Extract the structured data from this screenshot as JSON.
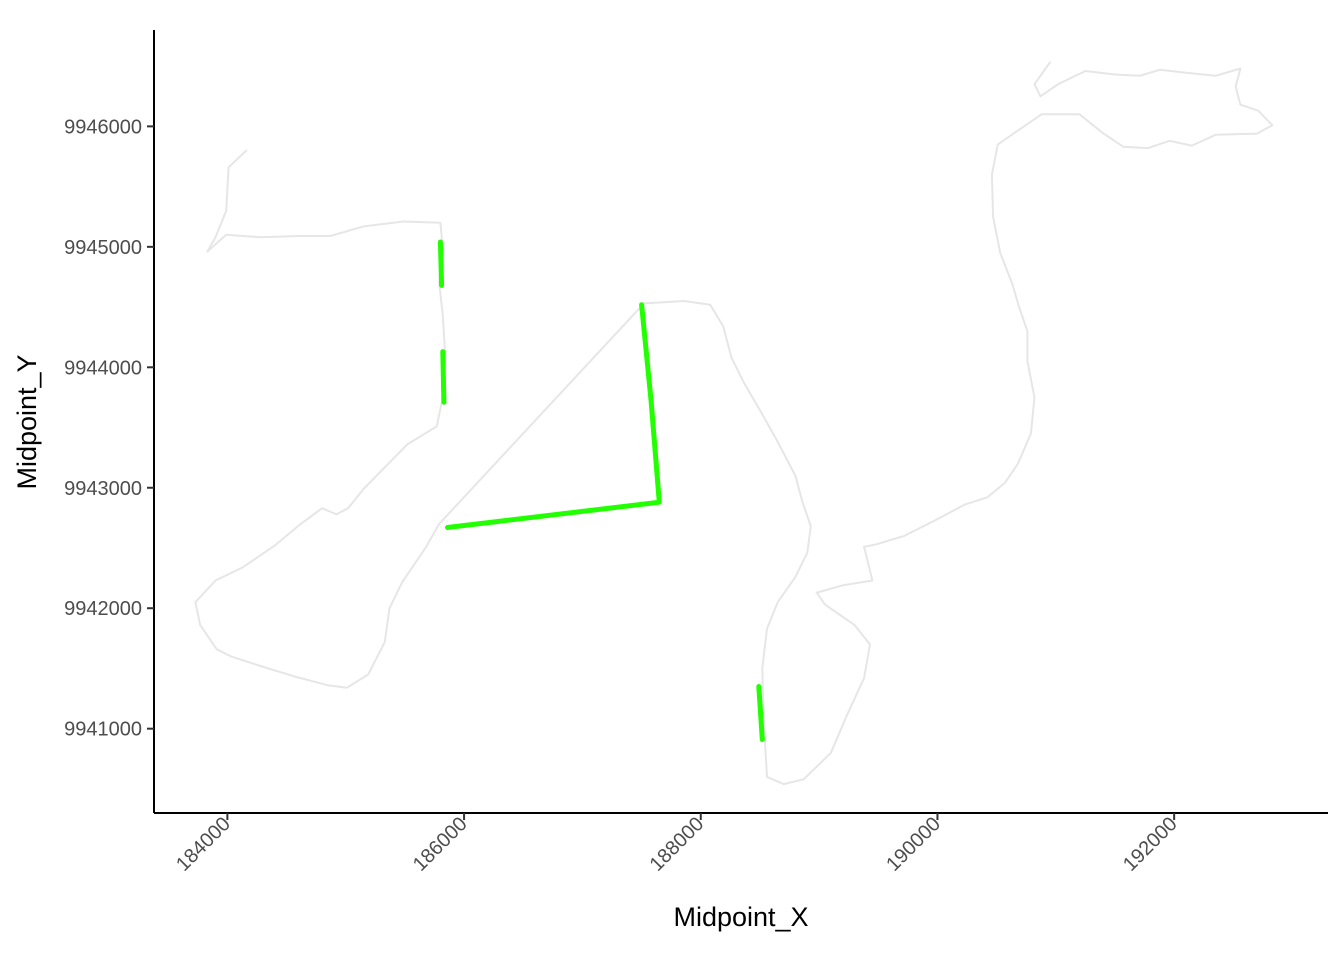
{
  "chart_data": {
    "type": "line",
    "title": "",
    "xlabel": "Midpoint_X",
    "ylabel": "Midpoint_Y",
    "xlim": [
      183380,
      193300
    ],
    "ylim": [
      9940300,
      9946800
    ],
    "x_ticks": [
      184000,
      186000,
      188000,
      190000,
      192000
    ],
    "x_tick_labels": [
      "184000",
      "186000",
      "188000",
      "190000",
      "192000"
    ],
    "y_ticks": [
      9941000,
      9942000,
      9943000,
      9944000,
      9945000,
      9946000
    ],
    "y_tick_labels": [
      "9941000",
      "9942000",
      "9943000",
      "9944000",
      "9945000",
      "9946000"
    ],
    "grid": false,
    "legend": "none",
    "colors": {
      "background_path": "#e6e6e6",
      "highlight": "#22ff00",
      "axis": "#000000"
    },
    "series": [
      {
        "role": "background",
        "color": "#e6e6e6",
        "points": [
          [
            184160,
            9945800
          ],
          [
            184010,
            9945660
          ],
          [
            183990,
            9945300
          ],
          [
            183900,
            9945080
          ],
          [
            183830,
            9944960
          ],
          [
            183990,
            9945100
          ],
          [
            184280,
            9945080
          ],
          [
            184600,
            9945090
          ],
          [
            184870,
            9945090
          ],
          [
            185150,
            9945170
          ],
          [
            185490,
            9945210
          ],
          [
            185800,
            9945200
          ],
          [
            185820,
            9944980
          ],
          [
            185790,
            9944700
          ],
          [
            185820,
            9944430
          ],
          [
            185840,
            9944120
          ],
          [
            185830,
            9943800
          ],
          [
            185770,
            9943510
          ],
          [
            185520,
            9943360
          ],
          [
            185150,
            9942990
          ],
          [
            185020,
            9942830
          ],
          [
            184920,
            9942780
          ],
          [
            184800,
            9942830
          ],
          [
            184620,
            9942700
          ],
          [
            184400,
            9942520
          ],
          [
            184130,
            9942340
          ],
          [
            183900,
            9942230
          ],
          [
            183730,
            9942050
          ],
          [
            183770,
            9941860
          ],
          [
            183910,
            9941660
          ],
          [
            184030,
            9941600
          ],
          [
            184280,
            9941520
          ],
          [
            184580,
            9941430
          ],
          [
            184850,
            9941360
          ],
          [
            185010,
            9941340
          ],
          [
            185190,
            9941450
          ],
          [
            185330,
            9941720
          ],
          [
            185370,
            9942000
          ],
          [
            185480,
            9942220
          ],
          [
            185680,
            9942510
          ],
          [
            185790,
            9942700
          ],
          [
            187520,
            9944530
          ],
          [
            187860,
            9944550
          ],
          [
            188080,
            9944520
          ],
          [
            188190,
            9944340
          ],
          [
            188260,
            9944080
          ],
          [
            188360,
            9943880
          ],
          [
            188490,
            9943660
          ],
          [
            188640,
            9943400
          ],
          [
            188800,
            9943100
          ],
          [
            188860,
            9942880
          ],
          [
            188930,
            9942680
          ],
          [
            188900,
            9942460
          ],
          [
            188800,
            9942260
          ],
          [
            188650,
            9942050
          ],
          [
            188560,
            9941830
          ],
          [
            188520,
            9941500
          ],
          [
            188530,
            9941100
          ],
          [
            188560,
            9940600
          ],
          [
            188700,
            9940540
          ],
          [
            188870,
            9940580
          ],
          [
            189100,
            9940800
          ],
          [
            189230,
            9941100
          ],
          [
            189380,
            9941420
          ],
          [
            189430,
            9941700
          ],
          [
            189300,
            9941860
          ],
          [
            189050,
            9942030
          ],
          [
            188980,
            9942130
          ],
          [
            189200,
            9942190
          ],
          [
            189450,
            9942230
          ],
          [
            189380,
            9942510
          ],
          [
            189480,
            9942530
          ],
          [
            189720,
            9942600
          ],
          [
            190000,
            9942740
          ],
          [
            190230,
            9942860
          ],
          [
            190420,
            9942920
          ],
          [
            190570,
            9943040
          ],
          [
            190680,
            9943200
          ],
          [
            190790,
            9943450
          ],
          [
            190820,
            9943750
          ],
          [
            190760,
            9944050
          ],
          [
            190760,
            9944300
          ],
          [
            190690,
            9944500
          ],
          [
            190630,
            9944700
          ],
          [
            190530,
            9944950
          ],
          [
            190470,
            9945250
          ],
          [
            190460,
            9945600
          ],
          [
            190510,
            9945850
          ],
          [
            190880,
            9946100
          ],
          [
            191200,
            9946100
          ],
          [
            191390,
            9945950
          ],
          [
            191570,
            9945830
          ],
          [
            191780,
            9945820
          ],
          [
            191960,
            9945880
          ],
          [
            192150,
            9945840
          ],
          [
            192350,
            9945930
          ],
          [
            192700,
            9945940
          ],
          [
            192830,
            9946010
          ],
          [
            192710,
            9946130
          ],
          [
            192560,
            9946180
          ],
          [
            192520,
            9946330
          ],
          [
            192560,
            9946480
          ],
          [
            192350,
            9946420
          ],
          [
            192150,
            9946440
          ],
          [
            191880,
            9946470
          ],
          [
            191710,
            9946420
          ],
          [
            191510,
            9946430
          ],
          [
            191250,
            9946460
          ],
          [
            191020,
            9946350
          ],
          [
            190870,
            9946250
          ],
          [
            190820,
            9946350
          ],
          [
            190950,
            9946530
          ]
        ]
      },
      {
        "role": "highlight",
        "color": "#22ff00",
        "points": [
          [
            185800,
            9945040
          ],
          [
            185810,
            9944680
          ]
        ]
      },
      {
        "role": "highlight",
        "color": "#22ff00",
        "points": [
          [
            185820,
            9944130
          ],
          [
            185830,
            9943710
          ]
        ]
      },
      {
        "role": "highlight",
        "color": "#22ff00",
        "points": [
          [
            185860,
            9942670
          ],
          [
            187650,
            9942880
          ],
          [
            187580,
            9943720
          ],
          [
            187500,
            9944520
          ]
        ]
      },
      {
        "role": "highlight",
        "color": "#22ff00",
        "points": [
          [
            188490,
            9941350
          ],
          [
            188520,
            9940910
          ]
        ]
      }
    ]
  }
}
